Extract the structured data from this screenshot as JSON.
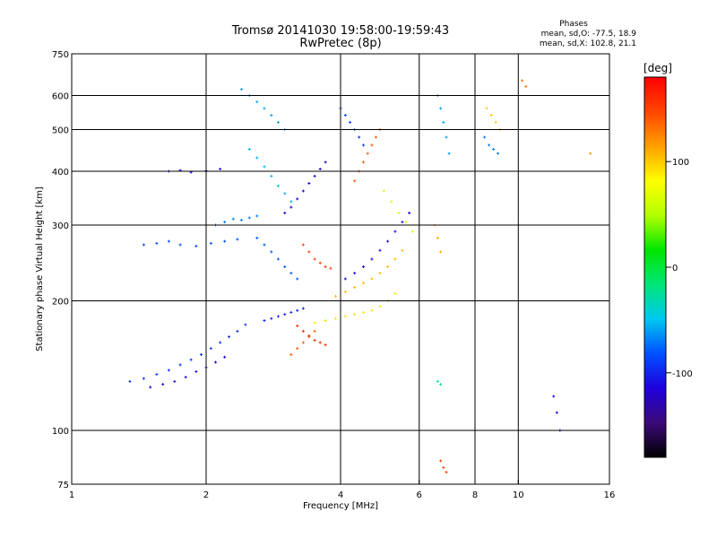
{
  "header": {
    "title": "Tromsø 20141030 19:58:00-19:59:43",
    "subtitle": "RwPretec (8p)"
  },
  "phase_box": {
    "title": "Phases",
    "line1": "mean, sd,O: -77.5, 18.9",
    "line2": "mean, sd,X: 102.8, 21.1"
  },
  "chart_data": {
    "type": "scatter",
    "xlabel": "Frequency [MHz]",
    "ylabel": "Stationary phase Virtual Height [km]",
    "x_scale": "log",
    "y_scale": "log",
    "xlim": [
      1,
      16
    ],
    "ylim": [
      75,
      750
    ],
    "x_ticks": [
      1,
      2,
      4,
      6,
      8,
      10,
      16
    ],
    "y_ticks": [
      75,
      100,
      200,
      300,
      400,
      500,
      600,
      750
    ],
    "x_grid": [
      2,
      4,
      6,
      8,
      10
    ],
    "y_grid": [
      100,
      200,
      300,
      400,
      500,
      600
    ],
    "grid": true,
    "colorbar": {
      "label": "[deg]",
      "range": [
        -180,
        180
      ],
      "ticks": [
        100,
        0,
        -100
      ],
      "colors": [
        "#000000",
        "#3c0a78",
        "#1e00dc",
        "#0050ff",
        "#00c8f0",
        "#00e678",
        "#00e600",
        "#b4ff00",
        "#ffff00",
        "#ffa000",
        "#ff4600",
        "#ff0000"
      ]
    },
    "series": [
      {
        "x": [
          1.35,
          1.45,
          1.55,
          1.65,
          1.75,
          1.85,
          1.95,
          2.05,
          2.15,
          2.25,
          2.35,
          2.45
        ],
        "y": [
          130,
          132,
          135,
          138,
          142,
          146,
          150,
          155,
          160,
          165,
          170,
          176
        ],
        "phase": -95
      },
      {
        "x": [
          1.5,
          1.6,
          1.7,
          1.8,
          1.9,
          2.0,
          2.1,
          2.2
        ],
        "y": [
          126,
          128,
          130,
          133,
          137,
          140,
          144,
          148
        ],
        "phase": -115
      },
      {
        "x": [
          1.65,
          1.75,
          1.85,
          2.0,
          2.15
        ],
        "y": [
          400,
          402,
          398,
          401,
          405
        ],
        "phase": -110
      },
      {
        "x": [
          1.45,
          1.55,
          1.65,
          1.75,
          1.9,
          2.05,
          2.2,
          2.35
        ],
        "y": [
          270,
          272,
          275,
          270,
          268,
          272,
          275,
          278
        ],
        "phase": -85
      },
      {
        "x": [
          2.1,
          2.2,
          2.3,
          2.4,
          2.5,
          2.6
        ],
        "y": [
          300,
          305,
          310,
          308,
          312,
          315
        ],
        "phase": -70
      },
      {
        "x": [
          2.4,
          2.5,
          2.6,
          2.7,
          2.8,
          2.9,
          3.0
        ],
        "y": [
          620,
          600,
          580,
          560,
          540,
          520,
          500
        ],
        "phase": -60
      },
      {
        "x": [
          2.5,
          2.6,
          2.7,
          2.8,
          2.9,
          3.0,
          3.1
        ],
        "y": [
          450,
          430,
          410,
          390,
          370,
          355,
          340
        ],
        "phase": -55
      },
      {
        "x": [
          2.6,
          2.7,
          2.8,
          2.9,
          3.0,
          3.1,
          3.2
        ],
        "y": [
          280,
          270,
          260,
          250,
          240,
          232,
          225
        ],
        "phase": -80
      },
      {
        "x": [
          2.7,
          2.8,
          2.9,
          3.0,
          3.1,
          3.2,
          3.3
        ],
        "y": [
          180,
          182,
          184,
          186,
          188,
          190,
          192
        ],
        "phase": -100
      },
      {
        "x": [
          3.0,
          3.1,
          3.2,
          3.3,
          3.4,
          3.5,
          3.6,
          3.7
        ],
        "y": [
          320,
          330,
          345,
          360,
          375,
          390,
          405,
          420
        ],
        "phase": -120
      },
      {
        "x": [
          3.3,
          3.4,
          3.5,
          3.6,
          3.7,
          3.8
        ],
        "y": [
          270,
          260,
          250,
          245,
          240,
          238
        ],
        "phase": 150
      },
      {
        "x": [
          3.1,
          3.2,
          3.3,
          3.4,
          3.5
        ],
        "y": [
          150,
          155,
          160,
          165,
          170
        ],
        "phase": 140
      },
      {
        "x": [
          3.2,
          3.3,
          3.4,
          3.5,
          3.6,
          3.7
        ],
        "y": [
          175,
          170,
          166,
          162,
          160,
          158
        ],
        "phase": 160
      },
      {
        "x": [
          3.5,
          3.7,
          3.9,
          4.1,
          4.3,
          4.5,
          4.7,
          4.9,
          5.1,
          5.3
        ],
        "y": [
          178,
          180,
          182,
          184,
          186,
          188,
          190,
          194,
          200,
          208
        ],
        "phase": 90
      },
      {
        "x": [
          3.9,
          4.1,
          4.3,
          4.5,
          4.7,
          4.9,
          5.1,
          5.3,
          5.5
        ],
        "y": [
          205,
          210,
          215,
          220,
          225,
          232,
          240,
          250,
          262
        ],
        "phase": 105
      },
      {
        "x": [
          4.1,
          4.3,
          4.5,
          4.7,
          4.9,
          5.1,
          5.3,
          5.5,
          5.7
        ],
        "y": [
          225,
          232,
          240,
          250,
          262,
          275,
          290,
          305,
          320
        ],
        "phase": -110
      },
      {
        "x": [
          4.3,
          4.4,
          4.5,
          4.6,
          4.7,
          4.8,
          4.9
        ],
        "y": [
          380,
          400,
          420,
          440,
          460,
          480,
          500
        ],
        "phase": 140
      },
      {
        "x": [
          4.0,
          4.1,
          4.2,
          4.3,
          4.4,
          4.5
        ],
        "y": [
          560,
          540,
          520,
          500,
          480,
          460
        ],
        "phase": -90
      },
      {
        "x": [
          5.0,
          5.2,
          5.4,
          5.6,
          5.8
        ],
        "y": [
          360,
          340,
          320,
          305,
          290
        ],
        "phase": 60
      },
      {
        "x": [
          6.6,
          6.7,
          6.8,
          6.9,
          7.0
        ],
        "y": [
          600,
          560,
          520,
          480,
          440
        ],
        "phase": -60
      },
      {
        "x": [
          6.5,
          6.6,
          6.7
        ],
        "y": [
          300,
          280,
          260
        ],
        "phase": 110
      },
      {
        "x": [
          8.5,
          8.7,
          8.9,
          9.1
        ],
        "y": [
          560,
          540,
          520,
          500
        ],
        "phase": 100
      },
      {
        "x": [
          8.4,
          8.6,
          8.8,
          9.0
        ],
        "y": [
          480,
          460,
          450,
          440
        ],
        "phase": -70
      },
      {
        "x": [
          6.7,
          6.8,
          6.9
        ],
        "y": [
          85,
          82,
          80
        ],
        "phase": 150
      },
      {
        "x": [
          6.6,
          6.7
        ],
        "y": [
          130,
          128
        ],
        "phase": -20
      },
      {
        "x": [
          12,
          12.2,
          12.4
        ],
        "y": [
          120,
          110,
          100
        ],
        "phase": -110
      },
      {
        "x": [
          10.2,
          10.4
        ],
        "y": [
          650,
          630
        ],
        "phase": 130
      },
      {
        "x": [
          14.5
        ],
        "y": [
          440
        ],
        "phase": 120
      }
    ]
  }
}
